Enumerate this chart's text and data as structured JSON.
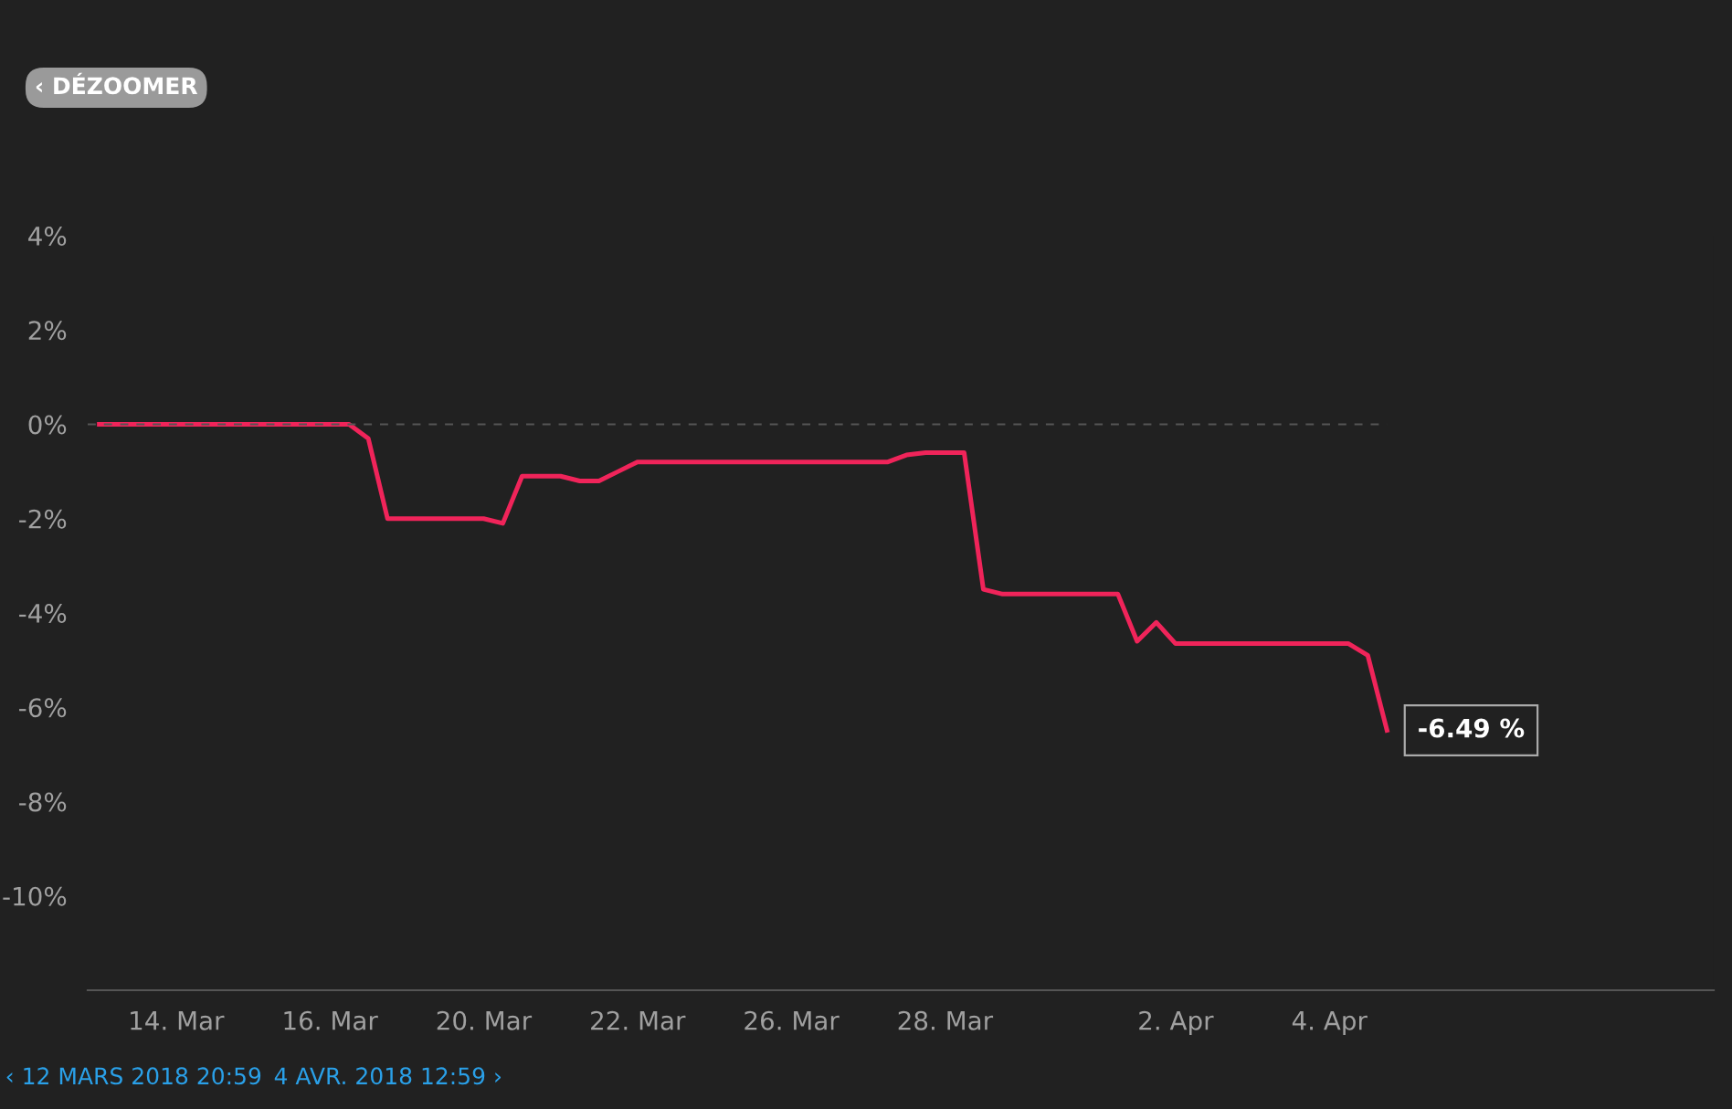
{
  "chart_data": {
    "type": "line",
    "categories": [
      null,
      null,
      null,
      null,
      "14. Mar",
      null,
      null,
      null,
      null,
      null,
      null,
      null,
      "16. Mar",
      null,
      null,
      null,
      null,
      null,
      null,
      null,
      "20. Mar",
      null,
      null,
      null,
      null,
      null,
      null,
      null,
      "22. Mar",
      null,
      null,
      null,
      null,
      null,
      null,
      null,
      "26. Mar",
      null,
      null,
      null,
      null,
      null,
      null,
      null,
      "28. Mar",
      null,
      null,
      null,
      null,
      null,
      null,
      null,
      null,
      null,
      null,
      null,
      "2. Apr",
      null,
      null,
      null,
      null,
      null,
      null,
      null,
      "4. Apr",
      null,
      null,
      null,
      null,
      null,
      null,
      null,
      null,
      null,
      null,
      null,
      null,
      null,
      null,
      null,
      null,
      null,
      null,
      null,
      null
    ],
    "series": [
      {
        "color": "#f0245a",
        "values": [
          0,
          0,
          0,
          0,
          0,
          0,
          0,
          0,
          0,
          0,
          0,
          0,
          0,
          0,
          -0.3,
          -2.0,
          -2.0,
          -2.0,
          -2.0,
          -2.0,
          -2.0,
          -2.1,
          -1.1,
          -1.1,
          -1.1,
          -1.2,
          -1.2,
          -1.0,
          -0.8,
          -0.8,
          -0.8,
          -0.8,
          -0.8,
          -0.8,
          -0.8,
          -0.8,
          -0.8,
          -0.8,
          -0.8,
          -0.8,
          -0.8,
          -0.8,
          -0.65,
          -0.6,
          -0.6,
          -0.6,
          -3.5,
          -3.6,
          -3.6,
          -3.6,
          -3.6,
          -3.6,
          -3.6,
          -3.6,
          -4.6,
          -4.2,
          -4.65,
          -4.65,
          -4.65,
          -4.65,
          -4.65,
          -4.65,
          -4.65,
          -4.65,
          -4.65,
          -4.65,
          -4.9,
          -6.49,
          null,
          null,
          null,
          null,
          null,
          null,
          null,
          null,
          null,
          null,
          null,
          null,
          null,
          null,
          null,
          null,
          null
        ]
      }
    ],
    "ylim": [
      -12,
      4
    ],
    "yticks": [
      {
        "value": 4,
        "label": "4%"
      },
      {
        "value": 2,
        "label": "2%"
      },
      {
        "value": 0,
        "label": "0%"
      },
      {
        "value": -2,
        "label": "-2%"
      },
      {
        "value": -4,
        "label": "-4%"
      },
      {
        "value": -6,
        "label": "-6%"
      },
      {
        "value": -8,
        "label": "-8%"
      },
      {
        "value": -10,
        "label": "-10%"
      }
    ],
    "ref_lines": [
      {
        "axis": "y",
        "value": 0,
        "color": "#555555",
        "line_style": "dashed"
      }
    ],
    "annotations": [
      "-6.49 %",
      "‹ DÉZOOMER",
      "‹ 12 MARS 2018 20:59",
      "4 AVR. 2018 12:59 ›"
    ]
  }
}
